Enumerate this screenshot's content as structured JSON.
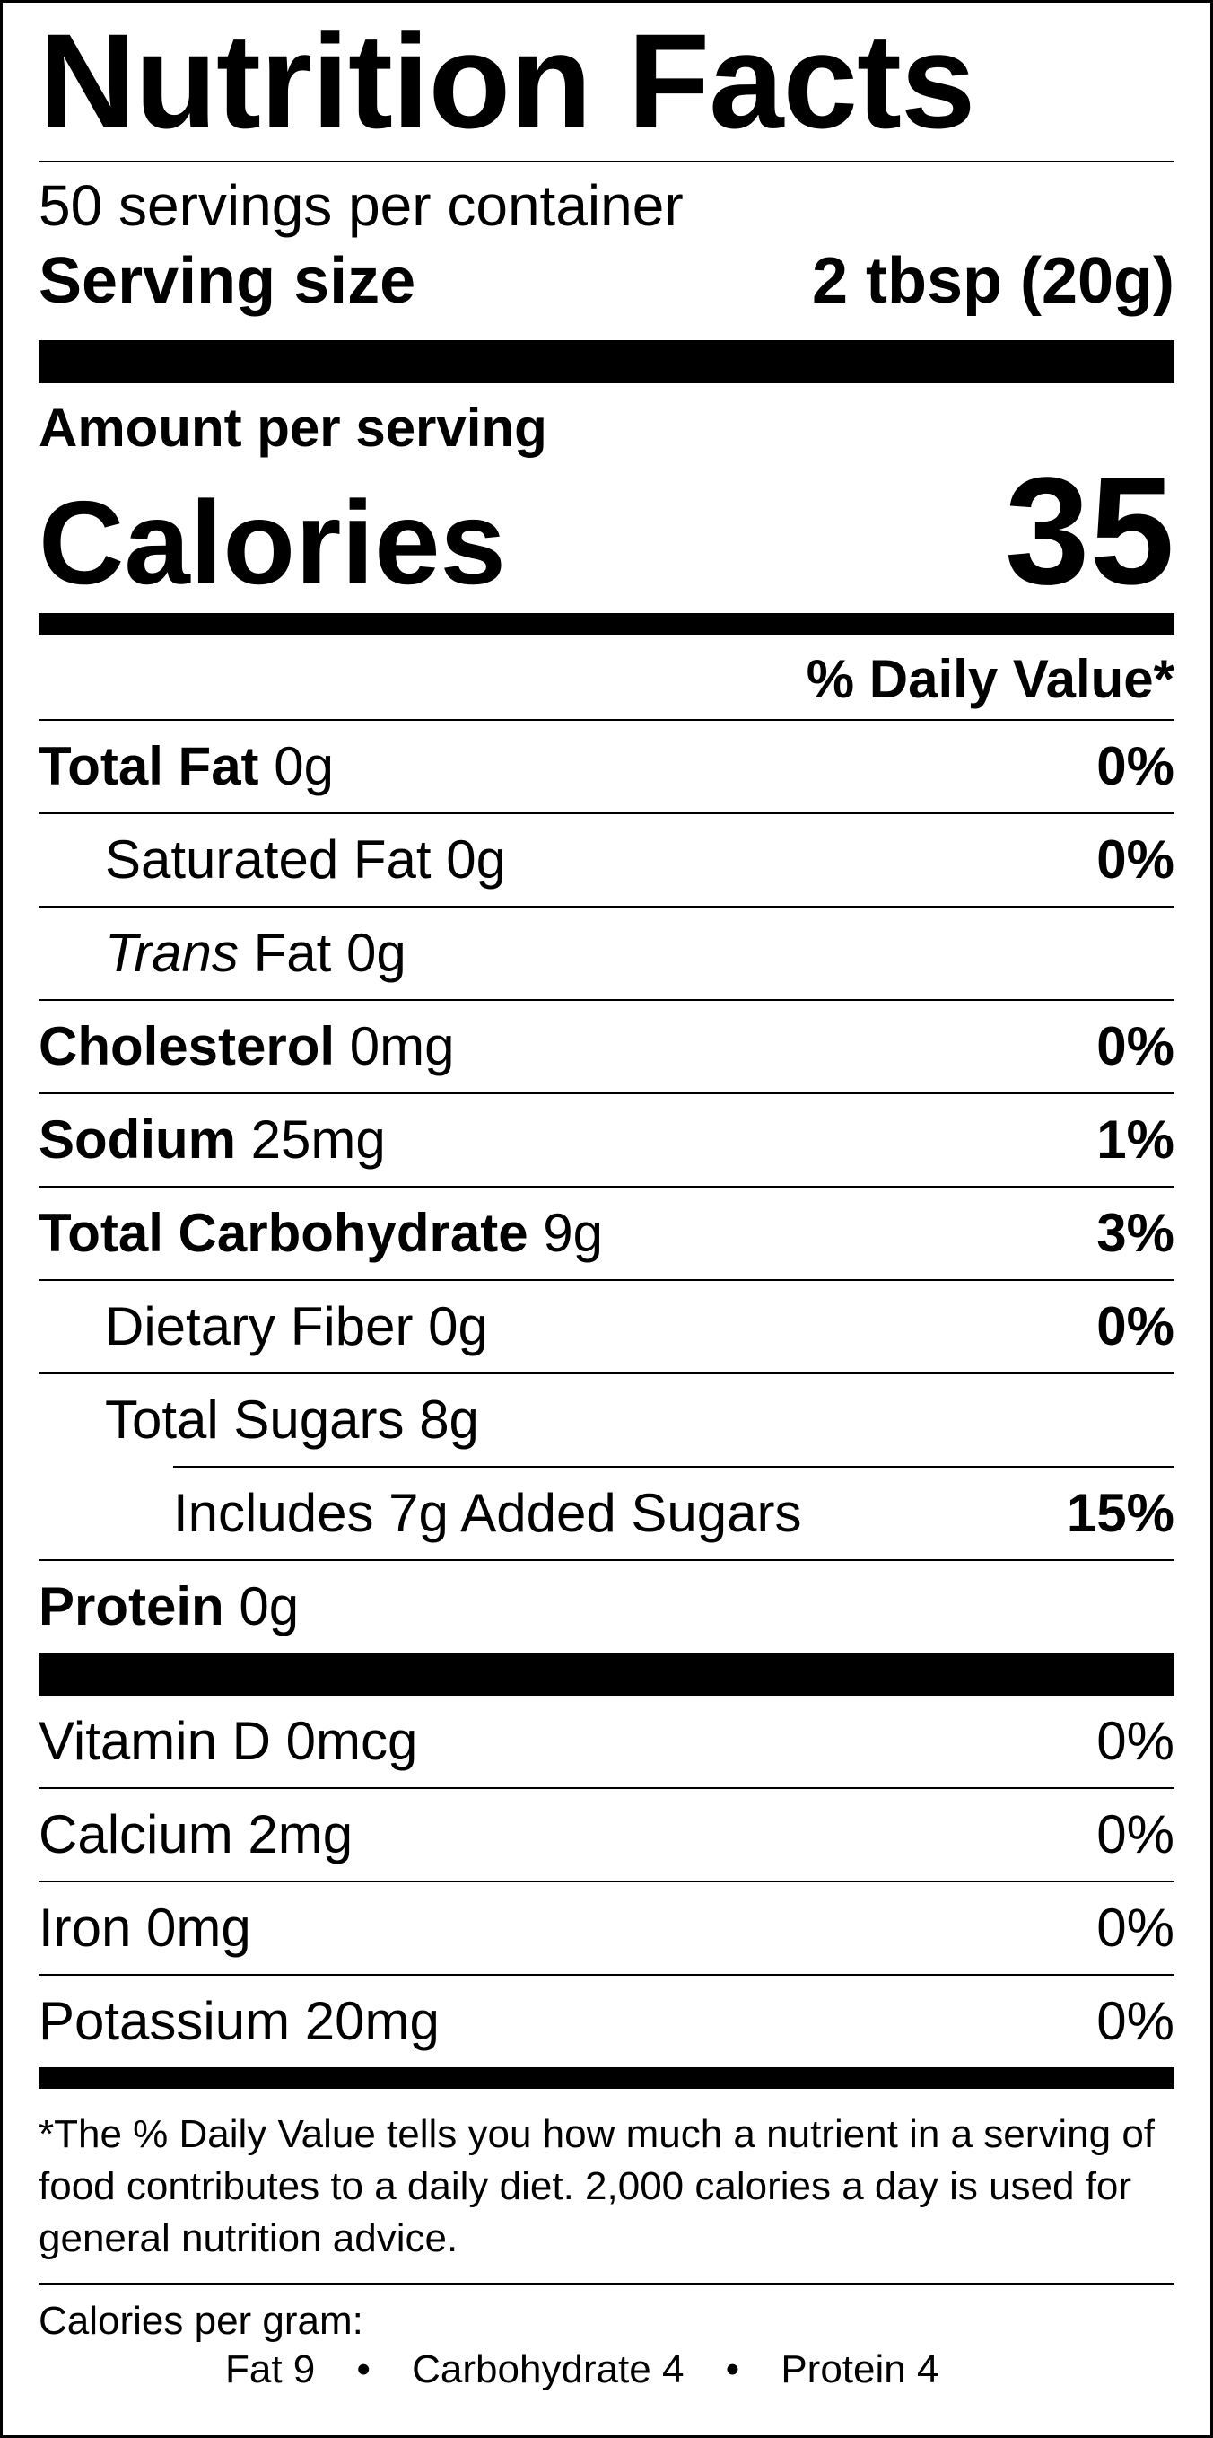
{
  "title": "Nutrition Facts",
  "servings_per_container": "50 servings per container",
  "serving_size": {
    "label": "Serving size",
    "value": "2 tbsp (20g)"
  },
  "amount_per_serving": "Amount per serving",
  "calories": {
    "label": "Calories",
    "value": "35"
  },
  "daily_value_header": "% Daily Value*",
  "nutrients": [
    {
      "name": "Total Fat",
      "amount": "0g",
      "dv": "0%"
    },
    {
      "name": "Saturated Fat",
      "amount": "0g",
      "dv": "0%"
    },
    {
      "name_italic": "Trans",
      "name": "Fat",
      "amount": "0g",
      "dv": ""
    },
    {
      "name": "Cholesterol",
      "amount": "0mg",
      "dv": "0%"
    },
    {
      "name": "Sodium",
      "amount": "25mg",
      "dv": "1%"
    },
    {
      "name": "Total Carbohydrate",
      "amount": "9g",
      "dv": "3%"
    },
    {
      "name": "Dietary Fiber",
      "amount": "0g",
      "dv": "0%"
    },
    {
      "name": "Total Sugars",
      "amount": "8g",
      "dv": ""
    },
    {
      "text": "Includes 7g Added Sugars",
      "dv": "15%"
    },
    {
      "name": "Protein",
      "amount": "0g",
      "dv": ""
    }
  ],
  "vitamins": [
    {
      "text": "Vitamin D 0mcg",
      "dv": "0%"
    },
    {
      "text": "Calcium 2mg",
      "dv": "0%"
    },
    {
      "text": "Iron 0mg",
      "dv": "0%"
    },
    {
      "text": "Potassium 20mg",
      "dv": "0%"
    }
  ],
  "footnote": "*The % Daily Value tells you how much a nutrient in a serving of food contributes to a daily diet. 2,000 calories a day is used for general nutrition advice.",
  "calories_per_gram": {
    "label": "Calories per gram:",
    "fat": "Fat 9",
    "carbohydrate": "Carbohydrate 4",
    "protein": "Protein 4",
    "separator": "•"
  }
}
